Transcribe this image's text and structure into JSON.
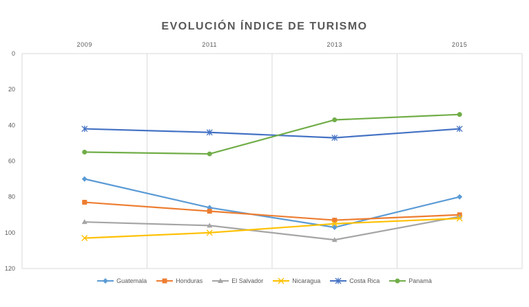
{
  "chart_data": {
    "type": "line",
    "title": "EVOLUCIÓN ÍNDICE DE TURISMO",
    "x": [
      "2009",
      "2011",
      "2013",
      "2015"
    ],
    "x_axis_position": "top",
    "y_reversed": true,
    "ylim": [
      0,
      120
    ],
    "yticks": [
      0,
      20,
      40,
      60,
      80,
      100,
      120
    ],
    "grid": "vertical",
    "legend_position": "bottom",
    "series": [
      {
        "name": "Guatemala",
        "color": "#5B9BD5",
        "marker": "diamond",
        "values": [
          70,
          86,
          97,
          80
        ]
      },
      {
        "name": "Honduras",
        "color": "#ED7D31",
        "marker": "square",
        "values": [
          83,
          88,
          93,
          90
        ]
      },
      {
        "name": "El Salvador",
        "color": "#A5A5A5",
        "marker": "triangle",
        "values": [
          94,
          96,
          104,
          91
        ]
      },
      {
        "name": "Nicaragua",
        "color": "#FFC000",
        "marker": "x",
        "values": [
          103,
          100,
          95,
          92
        ]
      },
      {
        "name": "Costa Rica",
        "color": "#4472C4",
        "marker": "star",
        "values": [
          42,
          44,
          47,
          42
        ]
      },
      {
        "name": "Panamá",
        "color": "#70AD47",
        "marker": "circle",
        "values": [
          55,
          56,
          37,
          34
        ]
      }
    ]
  }
}
